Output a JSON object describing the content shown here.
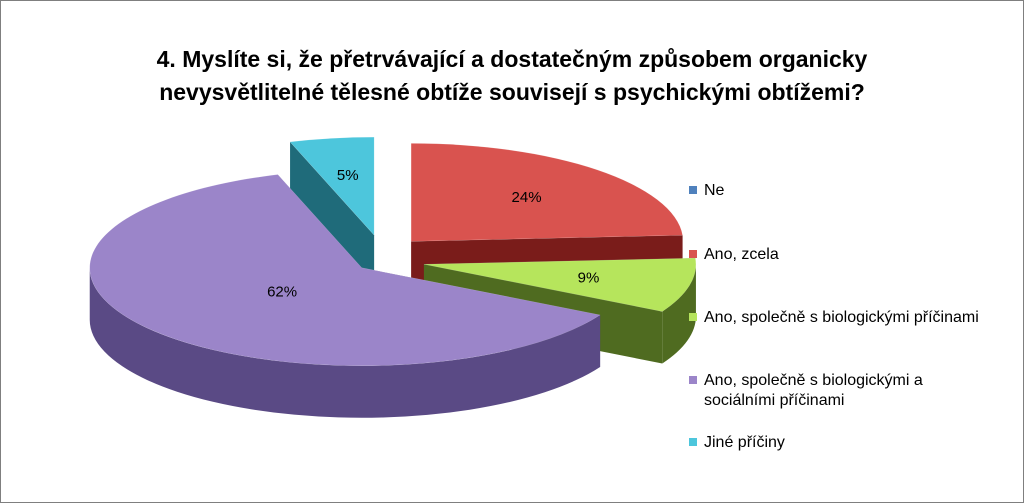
{
  "chart_data": {
    "type": "pie",
    "title": "4. Myslíte si, že přetrvávající a dostatečným způsobem organicky\nnevysvětlitelné tělesné obtíže souvisejí s psychickými obtížemi?",
    "categories": [
      "Ne",
      "Ano, zcela",
      "Ano, společně s biologickými příčinami",
      "Ano, společně s biologickými a\nsociálními příčinami",
      "Jiné příčiny"
    ],
    "values": [
      0,
      24,
      9,
      62,
      5
    ],
    "data_labels": [
      "",
      "24%",
      "9%",
      "62%",
      "5%"
    ],
    "colors": [
      "#4f81bd",
      "#d9534f",
      "#b6e55c",
      "#9b85c9",
      "#4dc6dc"
    ],
    "side_colors": [
      "#2d4d73",
      "#7a1c1a",
      "#4f6b20",
      "#5a4a85",
      "#1f6b7a"
    ],
    "legend_position": "right",
    "exploded": true,
    "style": "3d"
  }
}
